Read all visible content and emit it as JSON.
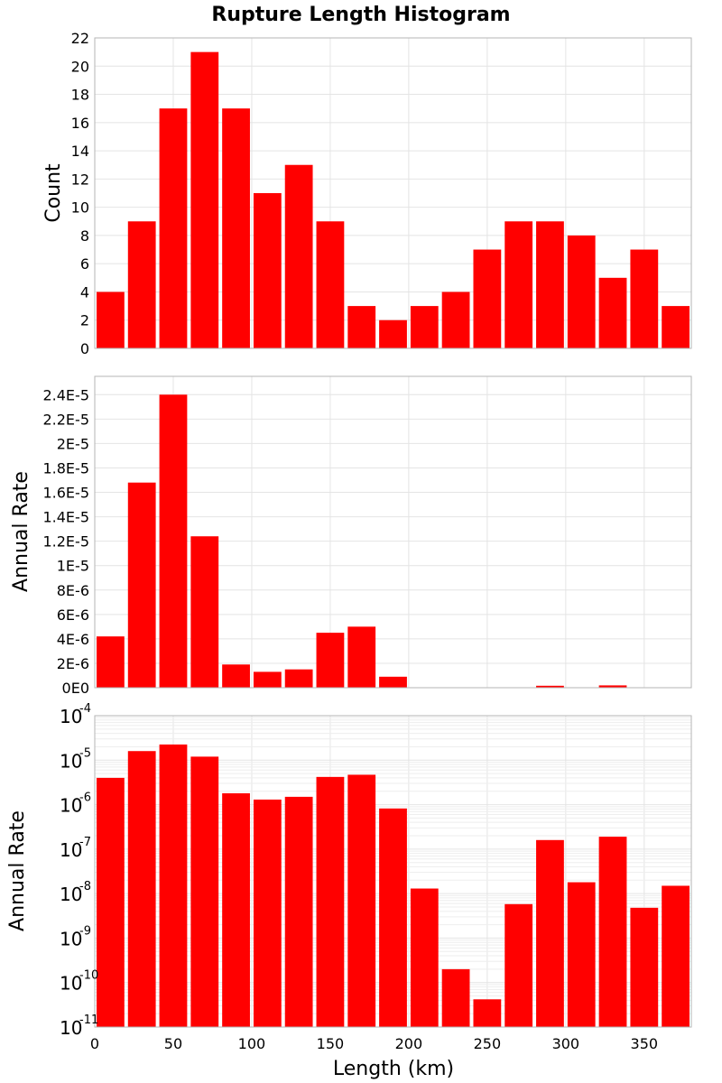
{
  "chart_data": [
    {
      "type": "bar",
      "title": "Rupture Length Histogram",
      "ylabel": "Count",
      "xlim": [
        0,
        380
      ],
      "ylim": [
        0,
        22
      ],
      "bin_width": 20,
      "x": [
        10,
        30,
        50,
        70,
        90,
        110,
        130,
        150,
        170,
        190,
        210,
        230,
        250,
        270,
        290,
        310,
        330,
        350,
        370
      ],
      "values": [
        4,
        9,
        17,
        21,
        17,
        11,
        13,
        9,
        3,
        2,
        3,
        4,
        7,
        9,
        9,
        8,
        5,
        7,
        3
      ],
      "yticks": [
        0,
        2,
        4,
        6,
        8,
        10,
        12,
        14,
        16,
        18,
        20,
        22
      ],
      "ytick_labels": [
        "0",
        "2",
        "4",
        "6",
        "8",
        "10",
        "12",
        "14",
        "16",
        "18",
        "20",
        "22"
      ],
      "color": "#ff0000",
      "grid": true
    },
    {
      "type": "bar",
      "ylabel": "Annual Rate",
      "xlim": [
        0,
        380
      ],
      "ylim": [
        0,
        2.55e-05
      ],
      "bin_width": 20,
      "x": [
        10,
        30,
        50,
        70,
        90,
        110,
        130,
        150,
        170,
        190,
        210,
        230,
        250,
        270,
        290,
        310,
        330,
        350,
        370
      ],
      "values": [
        4.2e-06,
        1.68e-05,
        2.4e-05,
        1.24e-05,
        1.9e-06,
        1.3e-06,
        1.5e-06,
        4.5e-06,
        5e-06,
        9e-07,
        1.3e-08,
        2e-10,
        4e-11,
        6e-09,
        1.6e-07,
        1.8e-08,
        1.9e-07,
        5e-09,
        1.5e-08
      ],
      "yticks": [
        0,
        2e-06,
        4e-06,
        6e-06,
        8e-06,
        1e-05,
        1.2e-05,
        1.4e-05,
        1.6e-05,
        1.8e-05,
        2e-05,
        2.2e-05,
        2.4e-05
      ],
      "ytick_labels": [
        "0E0",
        "2E-6",
        "4E-6",
        "6E-6",
        "8E-6",
        "1E-5",
        "1.2E-5",
        "1.4E-5",
        "1.6E-5",
        "1.8E-5",
        "2E-5",
        "2.2E-5",
        "2.4E-5"
      ],
      "color": "#ff0000",
      "grid": true
    },
    {
      "type": "bar",
      "ylabel": "Annual Rate",
      "xlabel": "Length (km)",
      "yscale": "log",
      "xlim": [
        0,
        380
      ],
      "ylim": [
        1e-11,
        0.0001
      ],
      "bin_width": 20,
      "x": [
        10,
        30,
        50,
        70,
        90,
        110,
        130,
        150,
        170,
        190,
        210,
        230,
        250,
        270,
        290,
        310,
        330,
        350,
        370
      ],
      "values": [
        4e-06,
        1.6e-05,
        2.25e-05,
        1.2e-05,
        1.8e-06,
        1.3e-06,
        1.5e-06,
        4.2e-06,
        4.7e-06,
        8.2e-07,
        1.3e-08,
        2e-10,
        4.2e-11,
        5.8e-09,
        1.6e-07,
        1.8e-08,
        1.9e-07,
        4.8e-09,
        1.5e-08
      ],
      "ytick_exponents": [
        -11,
        -10,
        -9,
        -8,
        -7,
        -6,
        -5,
        -4
      ],
      "ytick_base": "10",
      "xticks": [
        0,
        50,
        100,
        150,
        200,
        250,
        300,
        350
      ],
      "xtick_labels": [
        "0",
        "50",
        "100",
        "150",
        "200",
        "250",
        "300",
        "350"
      ],
      "color": "#ff0000",
      "grid": true
    }
  ]
}
